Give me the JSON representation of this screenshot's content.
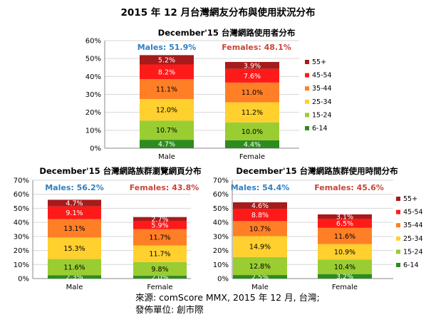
{
  "page": {
    "title": "2015 年 12 月台灣網友分布與使用狀況分布",
    "source_line1": "來源: comScore MMX, 2015 年 12 月, 台灣;",
    "source_line2": "發佈單位: 創市際"
  },
  "chart_data": [
    {
      "type": "bar",
      "stacked": true,
      "title": "December'15 台灣網路使用者分布",
      "categories": [
        "Male",
        "Female"
      ],
      "ylim": [
        0,
        60
      ],
      "yticks": [
        "0%",
        "10%",
        "20%",
        "30%",
        "40%",
        "50%",
        "60%"
      ],
      "grid": true,
      "legend_position": "right",
      "annotations": [
        "Males: 51.9%",
        "Females: 48.1%"
      ],
      "series": [
        {
          "name": "6-14",
          "color": "#2e8b1f",
          "values": [
            4.7,
            4.4
          ]
        },
        {
          "name": "15-24",
          "color": "#9acd32",
          "values": [
            10.7,
            10.0
          ]
        },
        {
          "name": "25-34",
          "color": "#ffd02e",
          "values": [
            12.0,
            11.2
          ]
        },
        {
          "name": "35-44",
          "color": "#ff7f27",
          "values": [
            11.1,
            11.0
          ]
        },
        {
          "name": "45-54",
          "color": "#ff1a1a",
          "values": [
            8.2,
            7.6
          ]
        },
        {
          "name": "55+",
          "color": "#a61b1b",
          "values": [
            5.2,
            3.9
          ]
        }
      ],
      "data_labels": [
        [
          "4.7%",
          "10.7%",
          "12.0%",
          "11.1%",
          "8.2%",
          "5.2%"
        ],
        [
          "4.4%",
          "10.0%",
          "11.2%",
          "11.0%",
          "7.6%",
          "3.9%"
        ]
      ]
    },
    {
      "type": "bar",
      "stacked": true,
      "title": "December'15 台灣網路族群瀏覽網頁分布",
      "categories": [
        "Male",
        "Female"
      ],
      "ylim": [
        0,
        70
      ],
      "yticks": [
        "0%",
        "10%",
        "20%",
        "30%",
        "40%",
        "50%",
        "60%",
        "70%"
      ],
      "grid": true,
      "legend_position": "none",
      "annotations": [
        "Males: 56.2%",
        "Females: 43.8%"
      ],
      "series": [
        {
          "name": "6-14",
          "color": "#2e8b1f",
          "values": [
            2.3,
            2.0
          ]
        },
        {
          "name": "15-24",
          "color": "#9acd32",
          "values": [
            11.6,
            9.8
          ]
        },
        {
          "name": "25-34",
          "color": "#ffd02e",
          "values": [
            15.3,
            11.7
          ]
        },
        {
          "name": "35-44",
          "color": "#ff7f27",
          "values": [
            13.1,
            11.7
          ]
        },
        {
          "name": "45-54",
          "color": "#ff1a1a",
          "values": [
            9.1,
            5.9
          ]
        },
        {
          "name": "55+",
          "color": "#a61b1b",
          "values": [
            4.7,
            2.7
          ]
        }
      ],
      "data_labels": [
        [
          "2.3%",
          "11.6%",
          "15.3%",
          "13.1%",
          "9.1%",
          "4.7%"
        ],
        [
          "2.0%",
          "9.8%",
          "11.7%",
          "11.7%",
          "5.9%",
          "2.7%"
        ]
      ]
    },
    {
      "type": "bar",
      "stacked": true,
      "title": "December'15 台灣網路族群使用時間分布",
      "categories": [
        "Male",
        "Female"
      ],
      "ylim": [
        0,
        70
      ],
      "yticks": [
        "0%",
        "10%",
        "20%",
        "30%",
        "40%",
        "50%",
        "60%",
        "70%"
      ],
      "grid": true,
      "legend_position": "right",
      "annotations": [
        "Males: 54.4%",
        "Females: 45.6%"
      ],
      "series": [
        {
          "name": "6-14",
          "color": "#2e8b1f",
          "values": [
            2.5,
            3.2
          ]
        },
        {
          "name": "15-24",
          "color": "#9acd32",
          "values": [
            12.8,
            10.4
          ]
        },
        {
          "name": "25-34",
          "color": "#ffd02e",
          "values": [
            14.9,
            10.9
          ]
        },
        {
          "name": "35-44",
          "color": "#ff7f27",
          "values": [
            10.7,
            11.6
          ]
        },
        {
          "name": "45-54",
          "color": "#ff1a1a",
          "values": [
            8.8,
            6.5
          ]
        },
        {
          "name": "55+",
          "color": "#a61b1b",
          "values": [
            4.6,
            3.1
          ]
        }
      ],
      "data_labels": [
        [
          "2.5%",
          "12.8%",
          "14.9%",
          "10.7%",
          "8.8%",
          "4.6%"
        ],
        [
          "3.2%",
          "10.4%",
          "10.9%",
          "11.6%",
          "6.5%",
          "3.1%"
        ]
      ]
    }
  ],
  "colors": {
    "male_label": "#2f7fc1",
    "female_label": "#c8453a",
    "grid": "#d6d6d6",
    "axis": "#888888"
  }
}
